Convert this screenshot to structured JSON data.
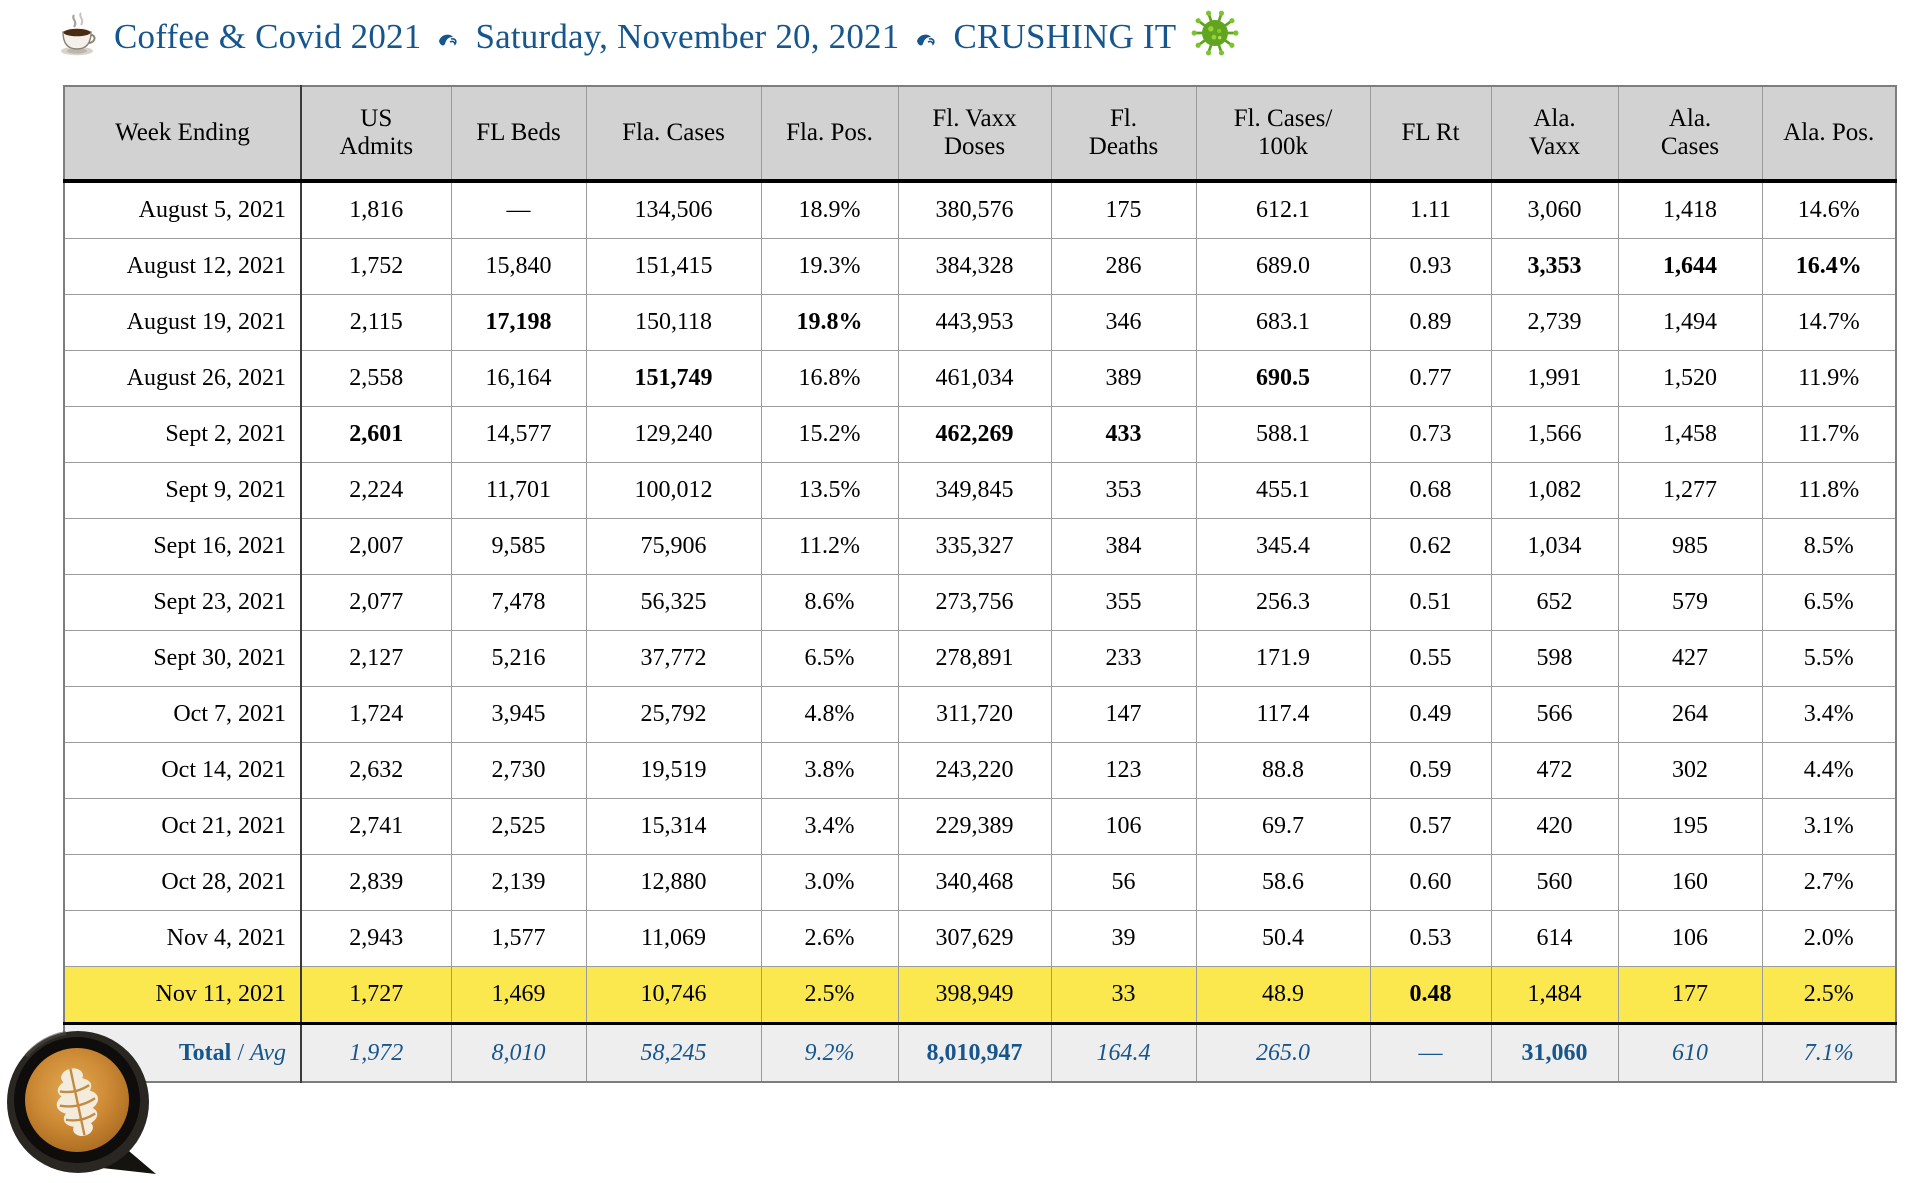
{
  "icons": {
    "title_prefix": "coffee-cup-icon",
    "title_separator": "fleuron-icon",
    "title_suffix": "virus-icon",
    "bottom_left": "latte-art-photo"
  },
  "title": {
    "part1": "Coffee & Covid 2021",
    "part2": "Saturday, November 20, 2021",
    "part3": "CRUSHING IT",
    "color": "#17568c"
  },
  "table": {
    "columns": [
      "Week Ending",
      "US\nAdmits",
      "FL Beds",
      "Fla. Cases",
      "Fla. Pos.",
      "Fl. Vaxx\nDoses",
      "Fl.\nDeaths",
      "Fl. Cases/\n100k",
      "FL Rt",
      "Ala.\nVaxx",
      "Ala.\nCases",
      "Ala. Pos."
    ],
    "highlight_color": "#fbe74e",
    "header_bg": "#d2d2d2",
    "total_bg": "#eeeeee",
    "total_text_color": "#17568c",
    "rows": [
      {
        "cells": [
          "August 5, 2021",
          "1,816",
          "—",
          "134,506",
          "18.9%",
          "380,576",
          "175",
          "612.1",
          "1.11",
          "3,060",
          "1,418",
          "14.6%"
        ],
        "bold": [],
        "highlight": false
      },
      {
        "cells": [
          "August 12, 2021",
          "1,752",
          "15,840",
          "151,415",
          "19.3%",
          "384,328",
          "286",
          "689.0",
          "0.93",
          "3,353",
          "1,644",
          "16.4%"
        ],
        "bold": [
          9,
          10,
          11
        ],
        "highlight": false
      },
      {
        "cells": [
          "August 19, 2021",
          "2,115",
          "17,198",
          "150,118",
          "19.8%",
          "443,953",
          "346",
          "683.1",
          "0.89",
          "2,739",
          "1,494",
          "14.7%"
        ],
        "bold": [
          2,
          4
        ],
        "highlight": false
      },
      {
        "cells": [
          "August 26, 2021",
          "2,558",
          "16,164",
          "151,749",
          "16.8%",
          "461,034",
          "389",
          "690.5",
          "0.77",
          "1,991",
          "1,520",
          "11.9%"
        ],
        "bold": [
          3,
          7
        ],
        "highlight": false
      },
      {
        "cells": [
          "Sept 2, 2021",
          "2,601",
          "14,577",
          "129,240",
          "15.2%",
          "462,269",
          "433",
          "588.1",
          "0.73",
          "1,566",
          "1,458",
          "11.7%"
        ],
        "bold": [
          1,
          5,
          6
        ],
        "highlight": false
      },
      {
        "cells": [
          "Sept 9, 2021",
          "2,224",
          "11,701",
          "100,012",
          "13.5%",
          "349,845",
          "353",
          "455.1",
          "0.68",
          "1,082",
          "1,277",
          "11.8%"
        ],
        "bold": [],
        "highlight": false
      },
      {
        "cells": [
          "Sept 16, 2021",
          "2,007",
          "9,585",
          "75,906",
          "11.2%",
          "335,327",
          "384",
          "345.4",
          "0.62",
          "1,034",
          "985",
          "8.5%"
        ],
        "bold": [],
        "highlight": false
      },
      {
        "cells": [
          "Sept 23, 2021",
          "2,077",
          "7,478",
          "56,325",
          "8.6%",
          "273,756",
          "355",
          "256.3",
          "0.51",
          "652",
          "579",
          "6.5%"
        ],
        "bold": [],
        "highlight": false
      },
      {
        "cells": [
          "Sept 30, 2021",
          "2,127",
          "5,216",
          "37,772",
          "6.5%",
          "278,891",
          "233",
          "171.9",
          "0.55",
          "598",
          "427",
          "5.5%"
        ],
        "bold": [],
        "highlight": false
      },
      {
        "cells": [
          "Oct 7, 2021",
          "1,724",
          "3,945",
          "25,792",
          "4.8%",
          "311,720",
          "147",
          "117.4",
          "0.49",
          "566",
          "264",
          "3.4%"
        ],
        "bold": [],
        "highlight": false
      },
      {
        "cells": [
          "Oct 14, 2021",
          "2,632",
          "2,730",
          "19,519",
          "3.8%",
          "243,220",
          "123",
          "88.8",
          "0.59",
          "472",
          "302",
          "4.4%"
        ],
        "bold": [],
        "highlight": false
      },
      {
        "cells": [
          "Oct 21, 2021",
          "2,741",
          "2,525",
          "15,314",
          "3.4%",
          "229,389",
          "106",
          "69.7",
          "0.57",
          "420",
          "195",
          "3.1%"
        ],
        "bold": [],
        "highlight": false
      },
      {
        "cells": [
          "Oct 28, 2021",
          "2,839",
          "2,139",
          "12,880",
          "3.0%",
          "340,468",
          "56",
          "58.6",
          "0.60",
          "560",
          "160",
          "2.7%"
        ],
        "bold": [],
        "highlight": false
      },
      {
        "cells": [
          "Nov 4, 2021",
          "2,943",
          "1,577",
          "11,069",
          "2.6%",
          "307,629",
          "39",
          "50.4",
          "0.53",
          "614",
          "106",
          "2.0%"
        ],
        "bold": [],
        "highlight": false
      },
      {
        "cells": [
          "Nov 11, 2021",
          "1,727",
          "1,469",
          "10,746",
          "2.5%",
          "398,949",
          "33",
          "48.9",
          "0.48",
          "1,484",
          "177",
          "2.5%"
        ],
        "bold": [
          8
        ],
        "highlight": true
      }
    ],
    "total": {
      "label_bold": "Total",
      "label_sep": " / ",
      "label_italic": "Avg",
      "values": [
        "1,972",
        "8,010",
        "58,245",
        "9.2%",
        "8,010,947",
        "164.4",
        "265.0",
        "—",
        "31,060",
        "610",
        "7.1%"
      ],
      "bold": [
        4,
        8
      ],
      "italic": [
        0,
        1,
        2,
        3,
        5,
        6,
        9,
        10
      ]
    }
  }
}
